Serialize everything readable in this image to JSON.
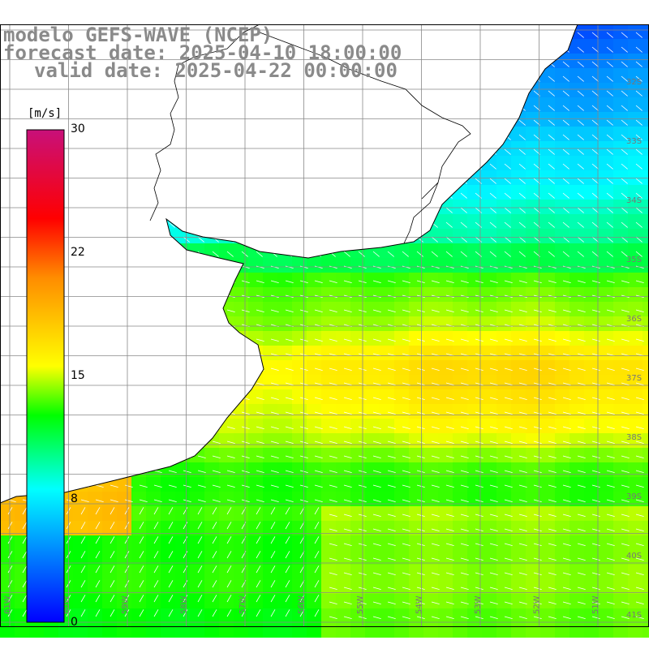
{
  "title": {
    "model": "modelo GEFS-WAVE (NCEP)",
    "forecast": "forecast date: 2025-04-10 18:00:00",
    "valid": "valid date: 2025-04-22 00:00:00"
  },
  "colorbar": {
    "unit": "[m/s]",
    "ticks": [
      "30",
      "22",
      "15",
      "8",
      "0"
    ],
    "range": [
      0,
      30
    ],
    "colors": [
      "#0000ff",
      "#00ffff",
      "#00ff00",
      "#ffff00",
      "#ff8c00",
      "#ff0000",
      "#c8107a"
    ]
  },
  "map": {
    "lon_labels": [
      "61W",
      "60W",
      "59W",
      "58W",
      "57W",
      "56W",
      "55W",
      "54W",
      "53W",
      "52W",
      "51W"
    ],
    "lat_labels": [
      "32S",
      "33S",
      "34S",
      "35S",
      "36S",
      "37S",
      "38S",
      "39S",
      "40S",
      "41S"
    ],
    "land_color": "#ffffff",
    "grid_color": "#888888",
    "arrow_color": "#ffffff"
  }
}
